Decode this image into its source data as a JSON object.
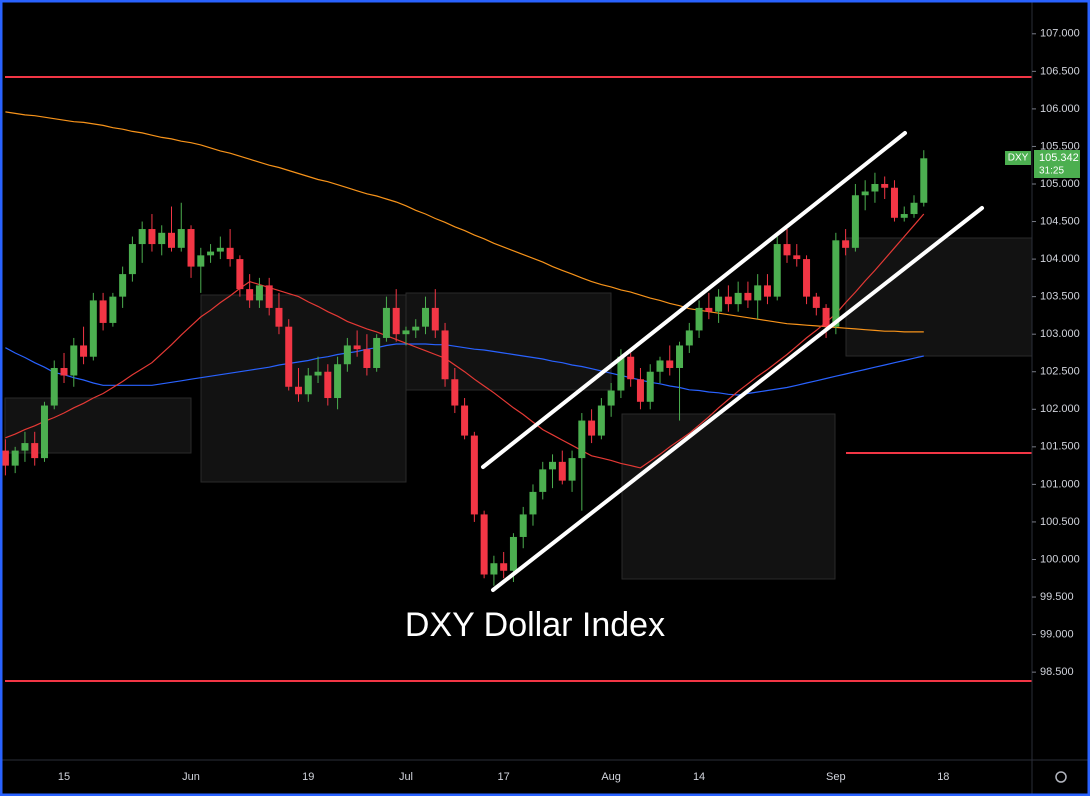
{
  "chart_data": {
    "type": "candlestick",
    "annotation": "DXY Dollar Index",
    "price_tag": {
      "symbol": "DXY",
      "price": "105.342",
      "countdown": "31:25"
    },
    "up_color": "#4caf50",
    "down_color": "#f23645",
    "ylim": [
      97.33,
      107.45
    ],
    "yticks": [
      {
        "value": 98.5,
        "label": "98.500"
      },
      {
        "value": 99,
        "label": "99.000"
      },
      {
        "value": 99.5,
        "label": "99.500"
      },
      {
        "value": 100,
        "label": "100.000"
      },
      {
        "value": 100.5,
        "label": "100.500"
      },
      {
        "value": 101,
        "label": "101.000"
      },
      {
        "value": 101.5,
        "label": "101.500"
      },
      {
        "value": 102,
        "label": "102.000"
      },
      {
        "value": 102.5,
        "label": "102.500"
      },
      {
        "value": 103,
        "label": "103.000"
      },
      {
        "value": 103.5,
        "label": "103.500"
      },
      {
        "value": 104,
        "label": "104.000"
      },
      {
        "value": 104.5,
        "label": "104.500"
      },
      {
        "value": 105,
        "label": "105.000"
      },
      {
        "value": 105.5,
        "label": "105.500"
      },
      {
        "value": 106,
        "label": "106.000"
      },
      {
        "value": 106.5,
        "label": "106.500"
      },
      {
        "value": 107,
        "label": "107.000"
      }
    ],
    "categories": [
      null,
      null,
      null,
      null,
      null,
      null,
      "15",
      null,
      null,
      null,
      null,
      null,
      null,
      null,
      null,
      null,
      null,
      null,
      null,
      "Jun",
      null,
      null,
      null,
      null,
      null,
      null,
      null,
      null,
      null,
      null,
      null,
      "19",
      null,
      null,
      null,
      null,
      null,
      null,
      null,
      null,
      null,
      "Jul",
      null,
      null,
      null,
      null,
      null,
      null,
      null,
      null,
      null,
      "17",
      null,
      null,
      null,
      null,
      null,
      null,
      null,
      null,
      null,
      null,
      "Aug",
      null,
      null,
      null,
      null,
      null,
      null,
      null,
      null,
      "14",
      null,
      null,
      null,
      null,
      null,
      null,
      null,
      null,
      null,
      null,
      null,
      null,
      null,
      "Sep",
      null,
      null,
      null,
      null,
      null,
      null,
      null,
      null,
      null,
      null,
      "18"
    ],
    "open": [
      101.45,
      101.25,
      101.45,
      101.55,
      101.35,
      102.05,
      102.55,
      102.45,
      102.85,
      102.7,
      103.45,
      103.15,
      103.5,
      103.8,
      104.2,
      104.4,
      104.2,
      104.35,
      104.15,
      104.4,
      103.9,
      104.05,
      104.1,
      104.15,
      104.0,
      103.6,
      103.45,
      103.65,
      103.35,
      103.1,
      102.3,
      102.2,
      102.45,
      102.5,
      102.15,
      102.6,
      102.85,
      102.8,
      102.55,
      102.95,
      103.35,
      103.0,
      103.05,
      103.1,
      103.35,
      103.05,
      102.4,
      102.05,
      101.65,
      100.6,
      99.8,
      99.95,
      99.85,
      100.3,
      100.6,
      100.9,
      101.2,
      101.3,
      101.05,
      101.35,
      101.85,
      101.65,
      102.05,
      102.25,
      102.7,
      102.4,
      102.1,
      102.5,
      102.65,
      102.55,
      102.85,
      103.05,
      103.35,
      103.3,
      103.5,
      103.4,
      103.55,
      103.45,
      103.65,
      103.5,
      104.2,
      104.05,
      104.0,
      103.5,
      103.35,
      103.1,
      104.25,
      104.15,
      104.85,
      104.9,
      105.0,
      104.95,
      104.55,
      104.6,
      104.75,
      null,
      null
    ],
    "high": [
      101.6,
      101.5,
      101.7,
      101.7,
      102.1,
      102.65,
      102.75,
      102.95,
      103.1,
      103.55,
      103.55,
      103.55,
      103.9,
      104.3,
      104.5,
      104.6,
      104.45,
      104.7,
      104.75,
      104.45,
      104.15,
      104.2,
      104.3,
      104.4,
      104.05,
      103.8,
      103.75,
      103.75,
      103.55,
      103.2,
      102.55,
      102.55,
      102.7,
      102.6,
      102.7,
      102.95,
      103.05,
      103.0,
      103.0,
      103.5,
      103.6,
      103.1,
      103.2,
      103.5,
      103.6,
      103.15,
      102.55,
      102.15,
      101.7,
      100.65,
      100.05,
      100.1,
      100.35,
      100.7,
      101.0,
      101.3,
      101.4,
      101.45,
      101.45,
      101.95,
      102.0,
      102.15,
      102.35,
      102.8,
      102.75,
      102.55,
      102.6,
      102.7,
      102.85,
      102.9,
      103.15,
      103.45,
      103.55,
      103.6,
      103.65,
      103.7,
      103.7,
      103.8,
      103.8,
      104.3,
      104.4,
      104.2,
      104.05,
      103.55,
      103.4,
      104.35,
      104.4,
      105.0,
      105.05,
      105.15,
      105.1,
      105.05,
      104.7,
      104.85,
      105.45,
      null,
      null
    ],
    "low": [
      101.12,
      101.15,
      101.3,
      101.25,
      101.3,
      102.0,
      102.35,
      102.3,
      102.6,
      102.65,
      103.05,
      103.1,
      103.35,
      103.7,
      103.95,
      104.1,
      104.05,
      104.1,
      104.1,
      103.75,
      103.55,
      103.95,
      104.0,
      103.9,
      103.5,
      103.35,
      103.35,
      103.25,
      103.0,
      102.25,
      102.1,
      102.1,
      102.35,
      102.05,
      102.0,
      102.5,
      102.7,
      102.45,
      102.5,
      102.9,
      102.9,
      102.85,
      102.95,
      103.0,
      102.95,
      102.3,
      101.95,
      101.6,
      100.5,
      99.75,
      99.65,
      99.75,
      99.7,
      100.15,
      100.45,
      100.8,
      100.95,
      101.0,
      100.9,
      100.65,
      101.55,
      101.6,
      101.9,
      102.15,
      102.3,
      102.0,
      102.0,
      102.35,
      102.45,
      101.85,
      102.75,
      102.95,
      103.2,
      103.15,
      103.3,
      103.3,
      103.35,
      103.2,
      103.4,
      103.45,
      103.95,
      103.9,
      103.4,
      103.25,
      102.95,
      103.0,
      104.05,
      104.1,
      104.65,
      104.75,
      104.8,
      104.5,
      104.5,
      104.55,
      104.7,
      null,
      null
    ],
    "close": [
      101.25,
      101.45,
      101.55,
      101.35,
      102.05,
      102.55,
      102.45,
      102.85,
      102.7,
      103.45,
      103.15,
      103.5,
      103.8,
      104.2,
      104.4,
      104.2,
      104.35,
      104.15,
      104.4,
      103.9,
      104.05,
      104.1,
      104.15,
      104.0,
      103.6,
      103.45,
      103.65,
      103.35,
      103.1,
      102.3,
      102.2,
      102.45,
      102.5,
      102.15,
      102.6,
      102.85,
      102.8,
      102.55,
      102.95,
      103.35,
      103.0,
      103.05,
      103.1,
      103.35,
      103.05,
      102.4,
      102.05,
      101.65,
      100.6,
      99.8,
      99.95,
      99.85,
      100.3,
      100.6,
      100.9,
      101.2,
      101.3,
      101.05,
      101.35,
      101.85,
      101.65,
      102.05,
      102.25,
      102.7,
      102.4,
      102.1,
      102.5,
      102.65,
      102.55,
      102.85,
      103.05,
      103.35,
      103.3,
      103.5,
      103.4,
      103.55,
      103.45,
      103.65,
      103.5,
      104.2,
      104.05,
      104.0,
      103.5,
      103.35,
      103.1,
      104.25,
      104.15,
      104.85,
      104.9,
      105.0,
      104.95,
      104.55,
      104.6,
      104.75,
      105.342,
      null,
      null
    ],
    "moving_averages": [
      {
        "color": "#f7931a",
        "values": [
          105.96,
          105.94,
          105.92,
          105.91,
          105.89,
          105.87,
          105.85,
          105.83,
          105.82,
          105.8,
          105.78,
          105.75,
          105.73,
          105.7,
          105.68,
          105.65,
          105.62,
          105.6,
          105.57,
          105.55,
          105.52,
          105.48,
          105.44,
          105.41,
          105.37,
          105.33,
          105.29,
          105.25,
          105.22,
          105.18,
          105.14,
          105.1,
          105.06,
          105.03,
          104.99,
          104.95,
          104.91,
          104.87,
          104.84,
          104.8,
          104.76,
          104.71,
          104.65,
          104.6,
          104.54,
          104.49,
          104.43,
          104.38,
          104.32,
          104.27,
          104.21,
          104.16,
          104.11,
          104.06,
          104.01,
          103.96,
          103.9,
          103.85,
          103.8,
          103.75,
          103.7,
          103.66,
          103.63,
          103.59,
          103.56,
          103.52,
          103.48,
          103.45,
          103.41,
          103.38,
          103.34,
          103.32,
          103.3,
          103.28,
          103.26,
          103.24,
          103.22,
          103.2,
          103.18,
          103.16,
          103.14,
          103.13,
          103.12,
          103.11,
          103.1,
          103.09,
          103.08,
          103.07,
          103.06,
          103.05,
          103.04,
          103.04,
          103.03,
          103.03,
          103.03,
          null,
          null
        ]
      },
      {
        "color": "#2962ff",
        "values": [
          102.82,
          102.75,
          102.69,
          102.62,
          102.56,
          102.49,
          102.46,
          102.42,
          102.39,
          102.35,
          102.32,
          102.32,
          102.32,
          102.32,
          102.32,
          102.32,
          102.34,
          102.36,
          102.38,
          102.4,
          102.42,
          102.44,
          102.46,
          102.48,
          102.5,
          102.52,
          102.54,
          102.56,
          102.59,
          102.61,
          102.63,
          102.65,
          102.68,
          102.7,
          102.73,
          102.75,
          102.77,
          102.8,
          102.82,
          102.85,
          102.87,
          102.87,
          102.87,
          102.87,
          102.86,
          102.86,
          102.84,
          102.82,
          102.8,
          102.79,
          102.77,
          102.75,
          102.73,
          102.71,
          102.69,
          102.67,
          102.64,
          102.62,
          102.59,
          102.57,
          102.54,
          102.51,
          102.48,
          102.45,
          102.42,
          102.39,
          102.36,
          102.34,
          102.31,
          102.29,
          102.26,
          102.25,
          102.23,
          102.22,
          102.2,
          102.19,
          102.21,
          102.23,
          102.25,
          102.27,
          102.29,
          102.32,
          102.35,
          102.38,
          102.41,
          102.44,
          102.47,
          102.5,
          102.53,
          102.56,
          102.59,
          102.62,
          102.65,
          102.68,
          102.71,
          null,
          null
        ]
      },
      {
        "color": "#e53935",
        "values": [
          101.62,
          101.67,
          101.73,
          101.78,
          101.84,
          101.89,
          101.95,
          102.02,
          102.08,
          102.15,
          102.21,
          102.29,
          102.37,
          102.46,
          102.54,
          102.62,
          102.74,
          102.86,
          102.99,
          103.11,
          103.23,
          103.32,
          103.42,
          103.51,
          103.61,
          103.7,
          103.66,
          103.62,
          103.58,
          103.54,
          103.5,
          103.43,
          103.37,
          103.3,
          103.24,
          103.17,
          103.12,
          103.07,
          103.03,
          102.98,
          102.93,
          102.88,
          102.83,
          102.78,
          102.73,
          102.68,
          102.59,
          102.5,
          102.4,
          102.31,
          102.22,
          102.12,
          102.02,
          101.93,
          101.83,
          101.73,
          101.66,
          101.59,
          101.52,
          101.45,
          101.38,
          101.35,
          101.32,
          101.28,
          101.25,
          101.22,
          101.31,
          101.4,
          101.5,
          101.59,
          101.68,
          101.79,
          101.9,
          102.02,
          102.13,
          102.24,
          102.34,
          102.44,
          102.53,
          102.63,
          102.73,
          102.84,
          102.95,
          103.05,
          103.16,
          103.27,
          103.42,
          103.56,
          103.71,
          103.85,
          104.0,
          104.15,
          104.3,
          104.45,
          104.6,
          null,
          null
        ]
      }
    ]
  }
}
